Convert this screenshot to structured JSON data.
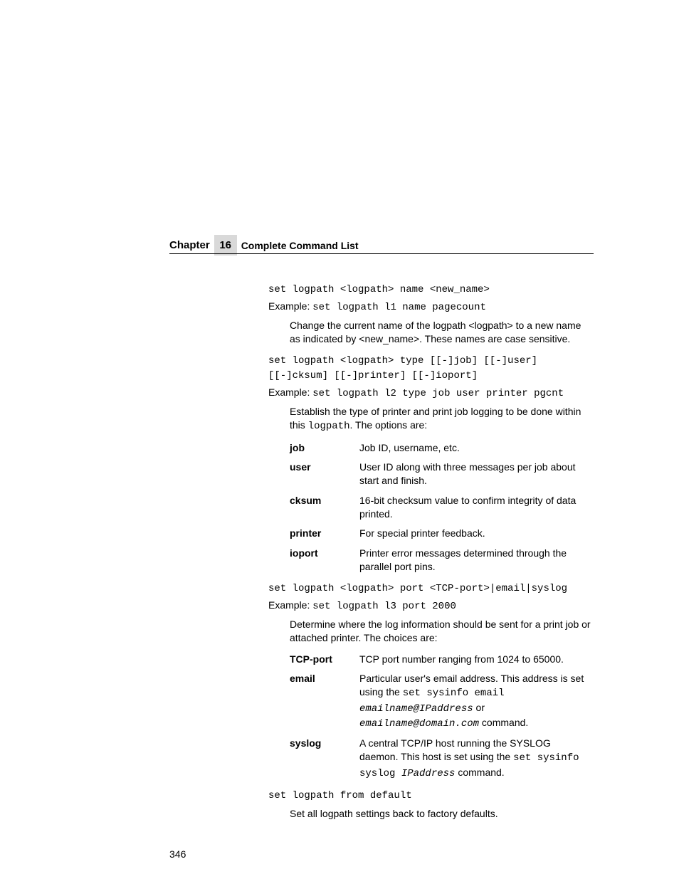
{
  "header": {
    "chapter_label": "Chapter",
    "chapter_number": "16",
    "title": "Complete Command List"
  },
  "section1": {
    "cmd": "set logpath <logpath> name <new_name>",
    "example_label": "Example:",
    "example_cmd": "set logpath l1 name pagecount",
    "desc": "Change the current name of the logpath <logpath> to a new name as indicated by <new_name>. These names are case sensitive."
  },
  "section2": {
    "cmd": "set logpath <logpath> type [[-]job] [[-]user] [[-]cksum] [[-]printer] [[-]ioport]",
    "example_label": "Example:",
    "example_cmd": "set logpath l2 type job user printer pgcnt",
    "desc_a": "Establish the type of printer and print job logging to be done within this ",
    "desc_code": "logpath",
    "desc_b": ". The options are:",
    "options": [
      {
        "term": "job",
        "def": "Job ID, username, etc."
      },
      {
        "term": "user",
        "def": "User ID along with three messages per job about start and finish."
      },
      {
        "term": "cksum",
        "def": "16-bit checksum value to confirm integrity of data printed."
      },
      {
        "term": "printer",
        "def": "For special printer feedback."
      },
      {
        "term": "ioport",
        "def": "Printer error messages determined through the parallel port pins."
      }
    ]
  },
  "section3": {
    "cmd": "set logpath <logpath> port <TCP-port>|email|syslog",
    "example_label": "Example:",
    "example_cmd": "set logpath l3 port 2000",
    "desc": "Determine where the log information should be sent for a print job or attached printer. The choices are:",
    "options": {
      "tcp": {
        "term": "TCP-port",
        "def": "TCP port number ranging from 1024 to 65000."
      },
      "email": {
        "term": "email",
        "a": "Particular user's email address. This address is set using the ",
        "code1": "set sysinfo email ",
        "code2": "emailname@IPaddress",
        "b": " or ",
        "code3": "emailname@domain.com",
        "c": " command."
      },
      "syslog": {
        "term": "syslog",
        "a": "A central TCP/IP host running the SYSLOG daemon. This host is set using the ",
        "code1": "set sysinfo syslog ",
        "code2": "IPaddress",
        "b": " command."
      }
    }
  },
  "section4": {
    "cmd": "set logpath from default",
    "desc": "Set all logpath settings back to factory defaults."
  },
  "page_number": "346"
}
